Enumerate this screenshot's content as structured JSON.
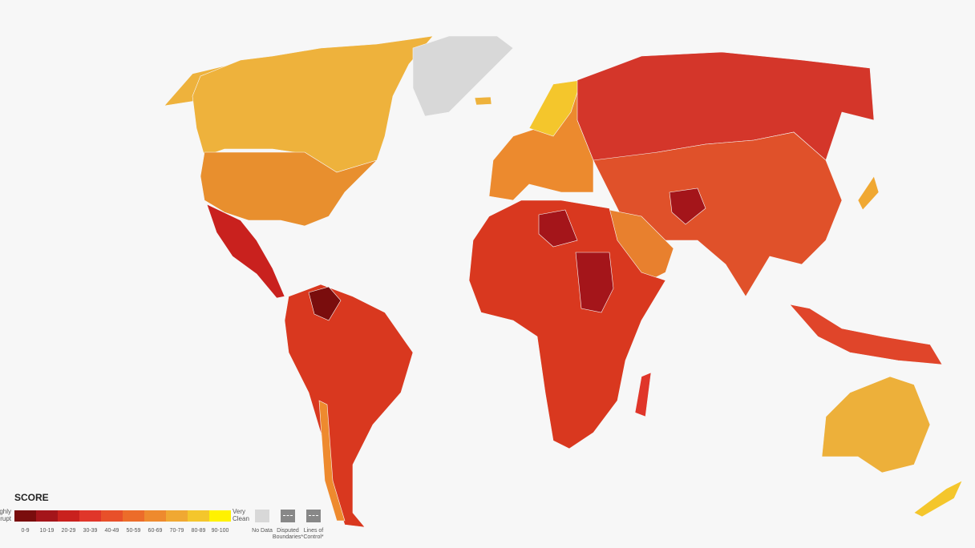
{
  "legend": {
    "title": "SCORE",
    "low_label": "Highly Corrupt",
    "high_label": "Very Clean",
    "scale": [
      {
        "label": "0-9",
        "color": "#7a0d0d"
      },
      {
        "label": "10-19",
        "color": "#a4151a"
      },
      {
        "label": "20-29",
        "color": "#c9211e"
      },
      {
        "label": "30-39",
        "color": "#e0362a"
      },
      {
        "label": "40-49",
        "color": "#e8502a"
      },
      {
        "label": "50-59",
        "color": "#ec6c2a"
      },
      {
        "label": "60-69",
        "color": "#ee8a2e"
      },
      {
        "label": "70-79",
        "color": "#f0a832"
      },
      {
        "label": "80-89",
        "color": "#f4c62c"
      },
      {
        "label": "90-100",
        "color": "#fff200"
      }
    ],
    "no_data": "No Data",
    "disputed": "Disputed Boundaries*",
    "lines_of_control": "Lines of Control*"
  }
}
